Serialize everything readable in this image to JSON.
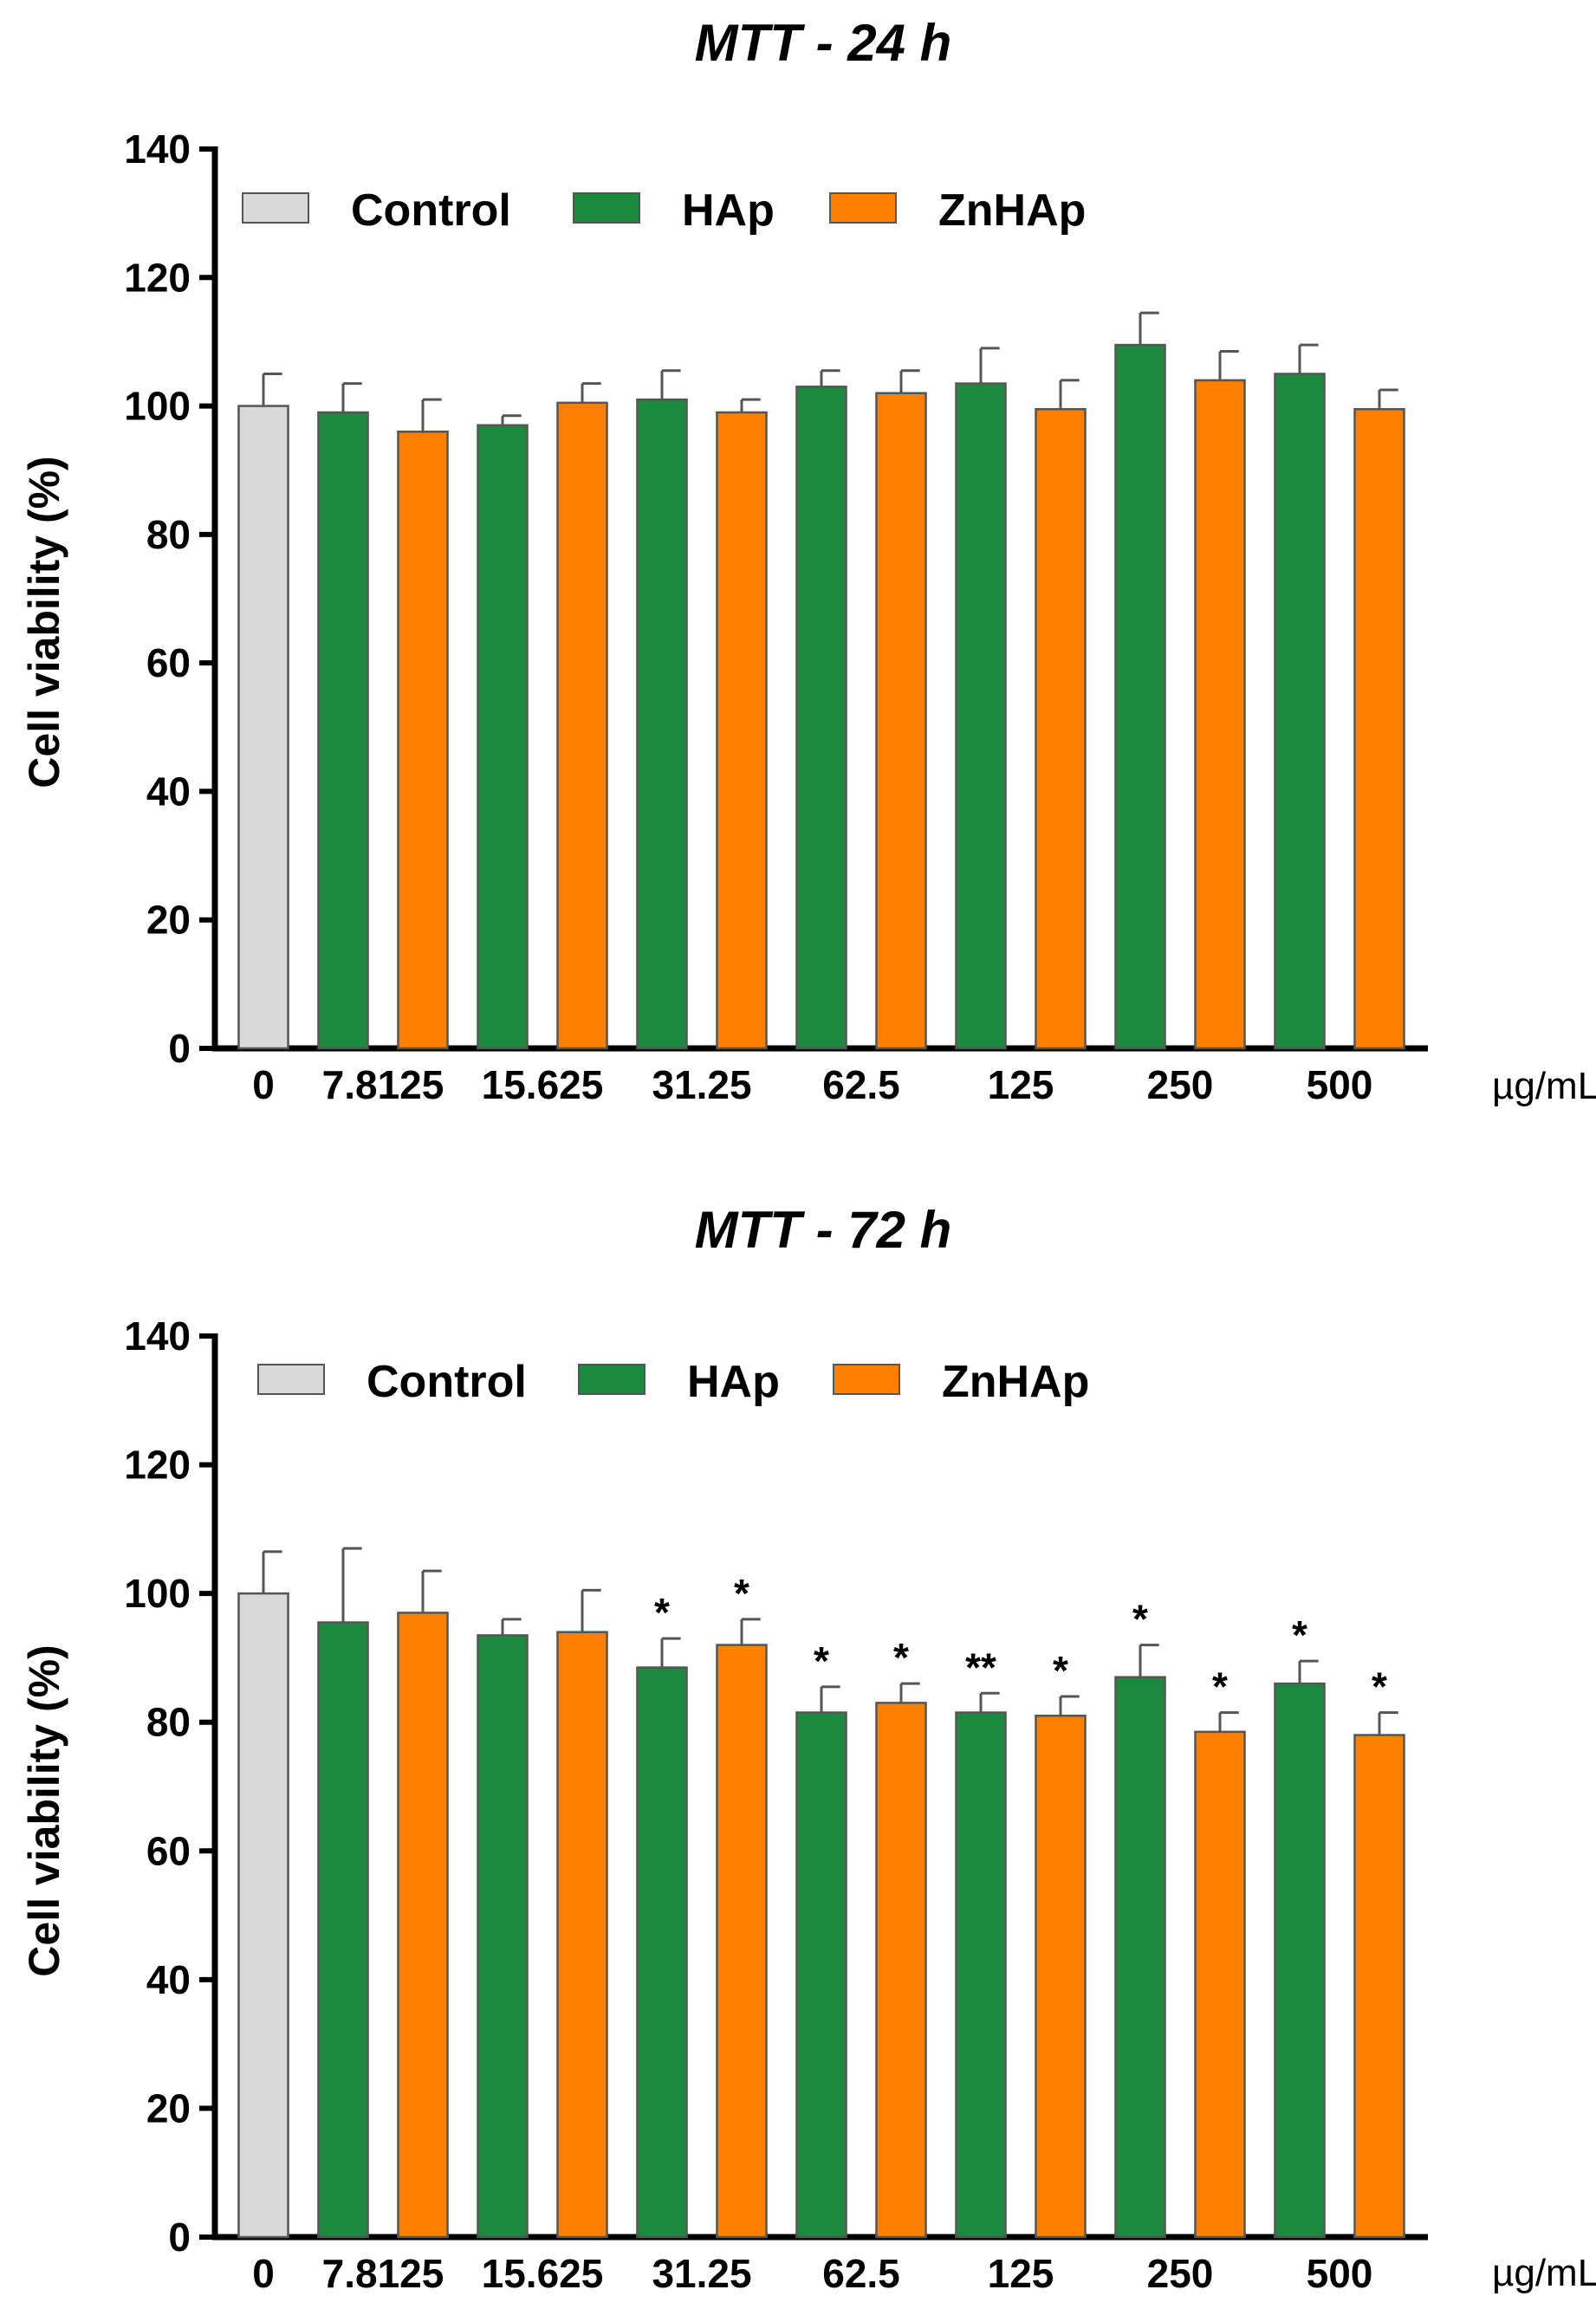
{
  "chart_data": [
    {
      "type": "bar",
      "title": "MTT - 24 h",
      "ylabel": "Cell viability (%)",
      "xlabel": "",
      "x_unit": "µg/mL",
      "ylim": [
        0,
        140
      ],
      "yticks": [
        "0",
        "20",
        "40",
        "60",
        "80",
        "100",
        "120",
        "140"
      ],
      "categories": [
        "0",
        "7.8125",
        "15.625",
        "31.25",
        "62.5",
        "125",
        "250",
        "500"
      ],
      "legend": [
        "Control",
        "HAp",
        "ZnHAp"
      ],
      "series": [
        {
          "name": "Control",
          "color": "#d9d9d9",
          "values": [
            100,
            null,
            null,
            null,
            null,
            null,
            null,
            null
          ],
          "errors": [
            5,
            null,
            null,
            null,
            null,
            null,
            null,
            null
          ],
          "marks": [
            "",
            "",
            "",
            "",
            "",
            "",
            "",
            ""
          ]
        },
        {
          "name": "HAp",
          "color": "#1c8a3e",
          "values": [
            null,
            99,
            97,
            101,
            103,
            103.5,
            109.5,
            105
          ],
          "errors": [
            null,
            4.5,
            1.5,
            4.5,
            2.5,
            5.5,
            5,
            4.5
          ],
          "marks": [
            "",
            "",
            "",
            "",
            "",
            "",
            "",
            ""
          ]
        },
        {
          "name": "ZnHAp",
          "color": "#ff8000",
          "values": [
            null,
            96,
            100.5,
            99,
            102,
            99.5,
            104,
            99.5
          ],
          "errors": [
            null,
            5,
            3,
            2,
            3.5,
            4.5,
            4.5,
            3
          ],
          "marks": [
            "",
            "",
            "",
            "",
            "",
            "",
            "",
            ""
          ]
        }
      ]
    },
    {
      "type": "bar",
      "title": "MTT - 72 h",
      "ylabel": "Cell viability (%)",
      "xlabel": "",
      "x_unit": "µg/mL",
      "ylim": [
        0,
        140
      ],
      "yticks": [
        "0",
        "20",
        "40",
        "60",
        "80",
        "100",
        "120",
        "140"
      ],
      "categories": [
        "0",
        "7.8125",
        "15.625",
        "31.25",
        "62.5",
        "125",
        "250",
        "500"
      ],
      "legend": [
        "Control",
        "HAp",
        "ZnHAp"
      ],
      "series": [
        {
          "name": "Control",
          "color": "#d9d9d9",
          "values": [
            100,
            null,
            null,
            null,
            null,
            null,
            null,
            null
          ],
          "errors": [
            6.5,
            null,
            null,
            null,
            null,
            null,
            null,
            null
          ],
          "marks": [
            "",
            "",
            "",
            "",
            "",
            "",
            "",
            ""
          ]
        },
        {
          "name": "HAp",
          "color": "#1c8a3e",
          "values": [
            null,
            95.5,
            93.5,
            88.5,
            81.5,
            81.5,
            87,
            86
          ],
          "errors": [
            null,
            11.5,
            2.5,
            4.5,
            4,
            3,
            5,
            3.5
          ],
          "marks": [
            "",
            "",
            "",
            "*",
            "*",
            "**",
            "*",
            "*"
          ]
        },
        {
          "name": "ZnHAp",
          "color": "#ff8000",
          "values": [
            null,
            97,
            94,
            92,
            83,
            81,
            78.5,
            78
          ],
          "errors": [
            null,
            6.5,
            6.5,
            4,
            3,
            3,
            3,
            3.5
          ],
          "marks": [
            "",
            "",
            "",
            "*",
            "*",
            "*",
            "*",
            "*"
          ]
        }
      ]
    }
  ]
}
